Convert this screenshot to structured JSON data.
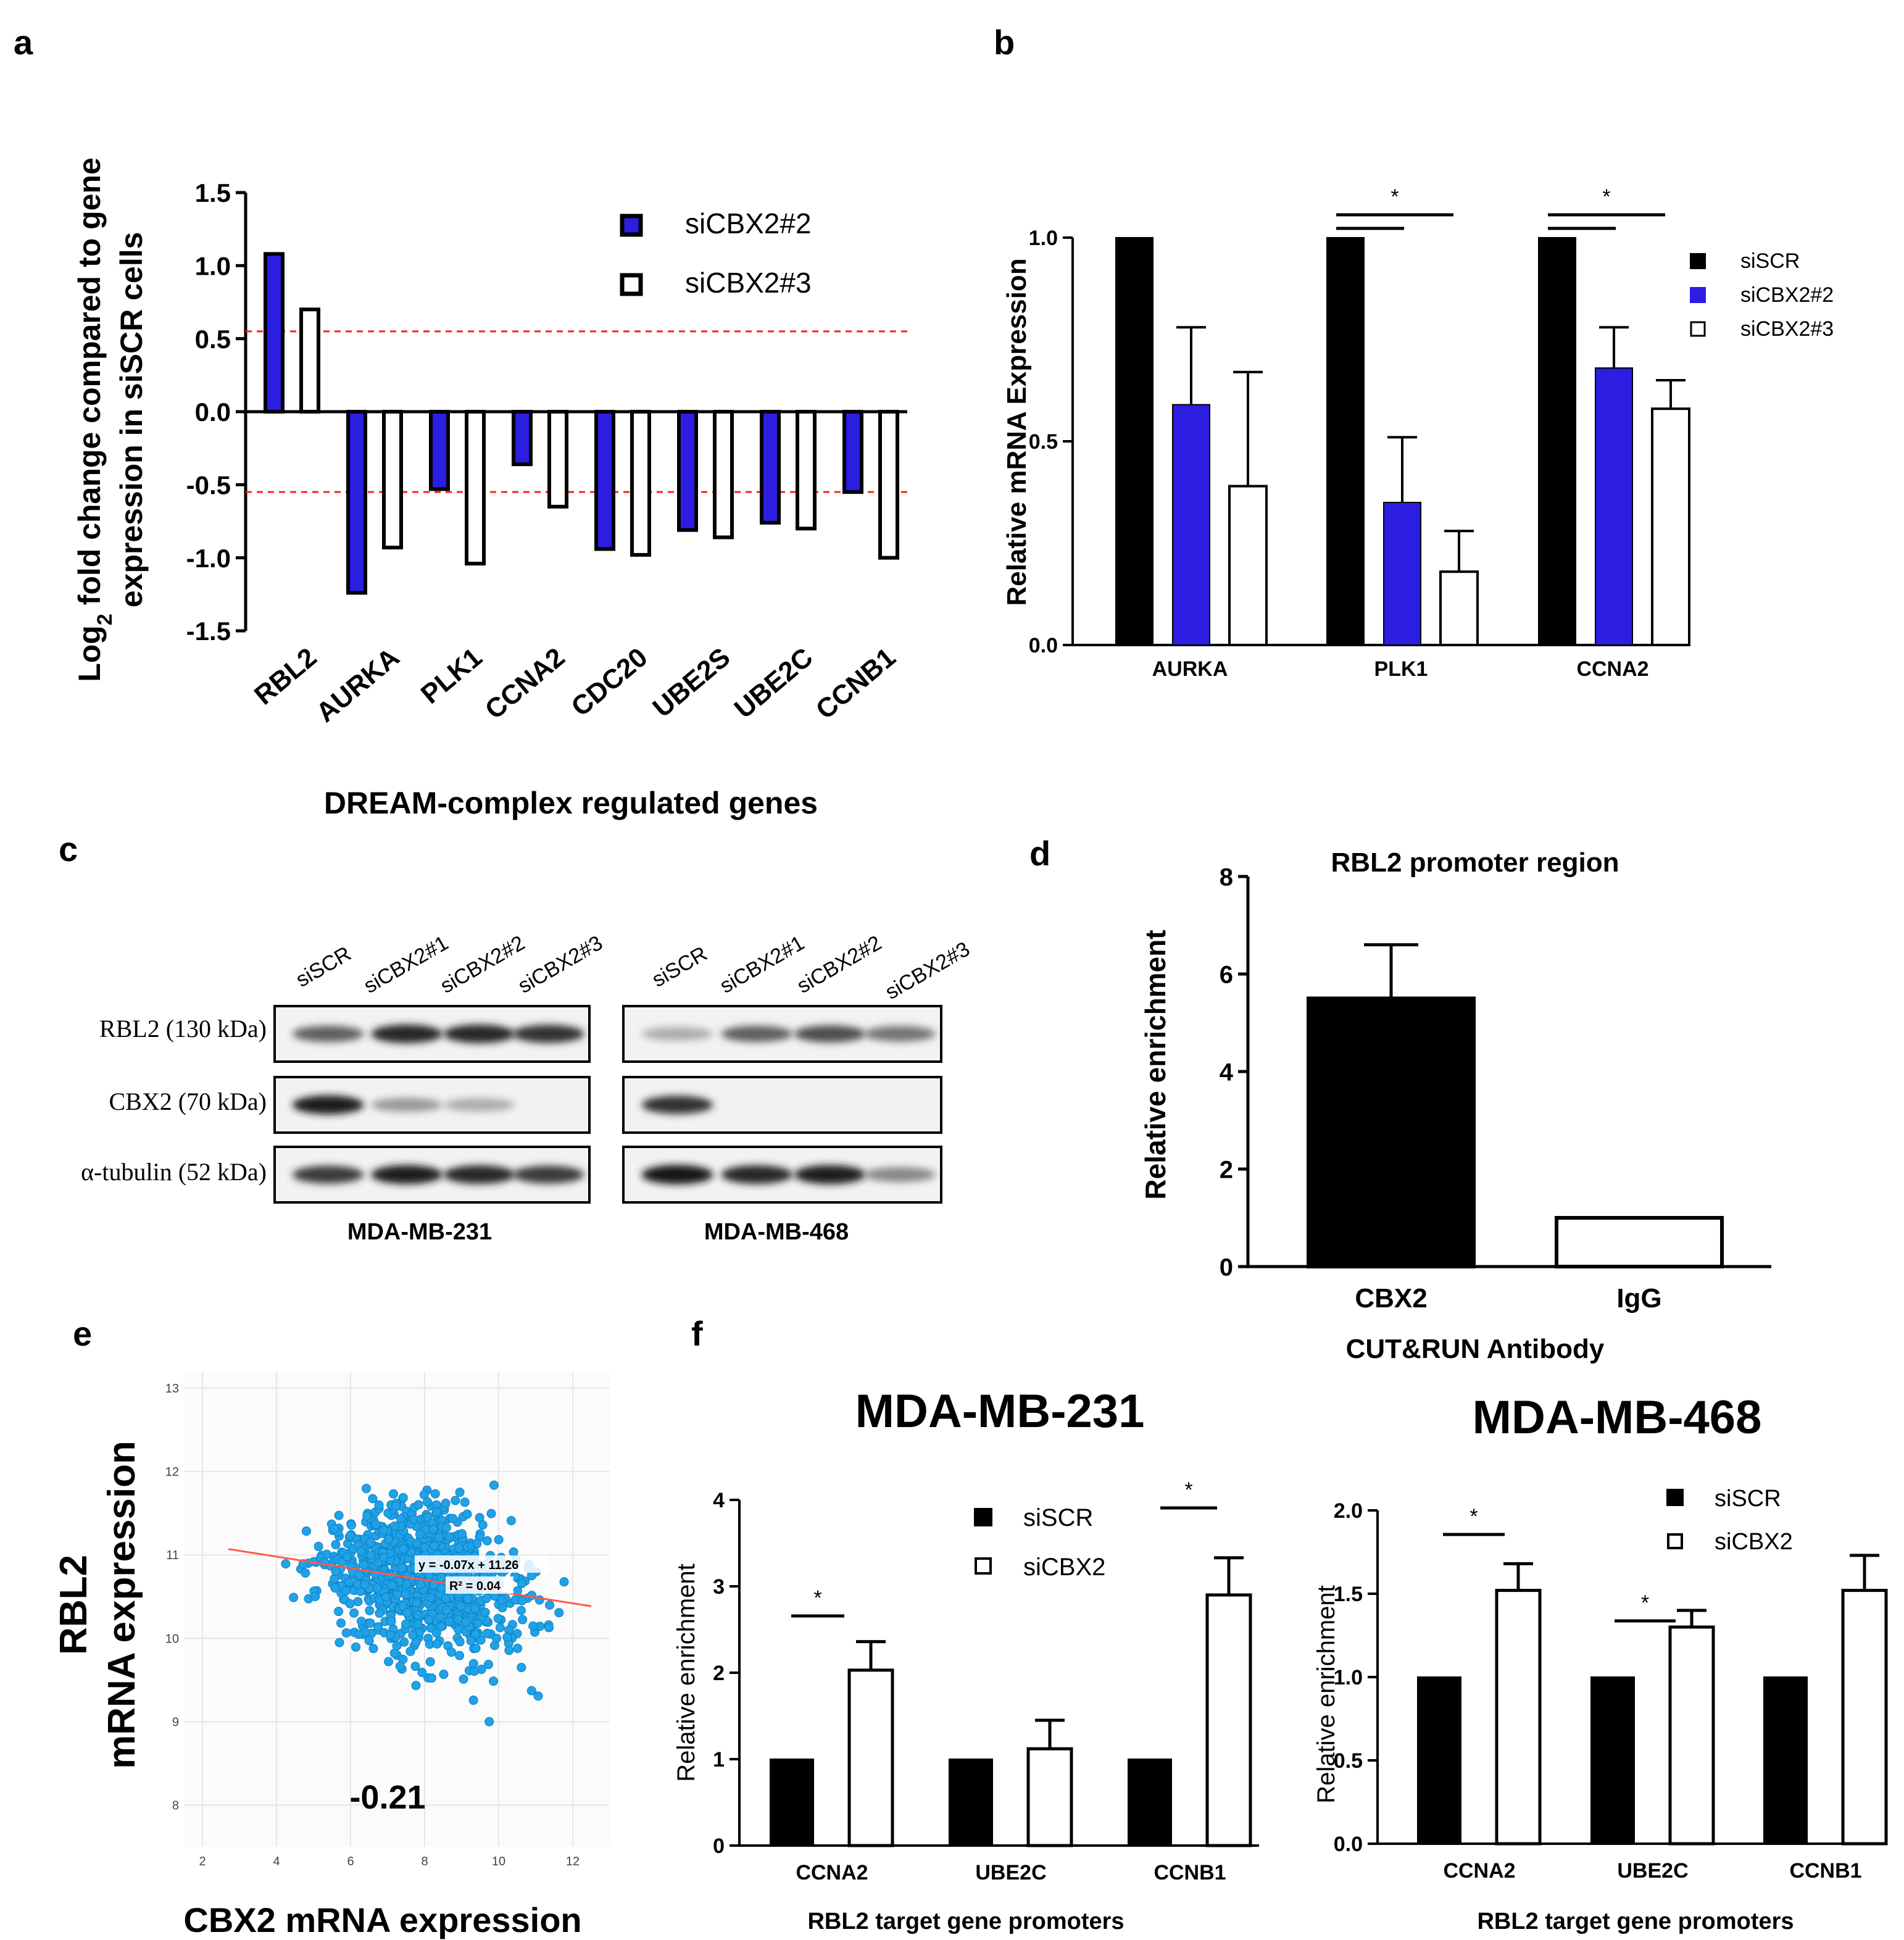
{
  "colors": {
    "black": "#000000",
    "blue": "#2b1ee0",
    "white": "#ffffff",
    "red_dash": "#ff2020",
    "scatter": "#1fa2e8",
    "fit_line": "#ff5a4a"
  },
  "panel_labels": [
    "a",
    "b",
    "c",
    "d",
    "e",
    "f"
  ],
  "chart_data": [
    {
      "id": "a",
      "type": "bar",
      "ylabel_line1": "Log",
      "ylabel_sub": "2",
      "ylabel_line1_rest": " fold change compared to gene",
      "ylabel_line2": "expression in siSCR cells",
      "xlabel": "DREAM-complex regulated genes",
      "categories": [
        "RBL2",
        "AURKA",
        "PLK1",
        "CCNA2",
        "CDC20",
        "UBE2S",
        "UBE2C",
        "CCNB1"
      ],
      "series": [
        {
          "name": "siCBX2#2",
          "values": [
            1.08,
            -1.24,
            -0.53,
            -0.36,
            -0.94,
            -0.81,
            -0.76,
            -0.55
          ]
        },
        {
          "name": "siCBX2#3",
          "values": [
            0.7,
            -0.93,
            -1.04,
            -0.65,
            -0.98,
            -0.86,
            -0.8,
            -1.0
          ]
        }
      ],
      "ylim": [
        -1.5,
        1.5
      ],
      "yticks": [
        "1.5",
        "1.0",
        "0.5",
        "0.0",
        "-0.5",
        "-1.0",
        "-1.5"
      ],
      "threshold_lines": [
        0.55,
        -0.55
      ]
    },
    {
      "id": "b",
      "type": "bar",
      "ylabel": "Relative mRNA Expression",
      "categories": [
        "AURKA",
        "PLK1",
        "CCNA2"
      ],
      "series": [
        {
          "name": "siSCR",
          "values": [
            1.0,
            1.0,
            1.0
          ],
          "errors": [
            0,
            0,
            0
          ]
        },
        {
          "name": "siCBX2#2",
          "values": [
            0.59,
            0.35,
            0.68
          ],
          "errors": [
            0.19,
            0.16,
            0.1
          ]
        },
        {
          "name": "siCBX2#3",
          "values": [
            0.39,
            0.18,
            0.58
          ],
          "errors": [
            0.28,
            0.1,
            0.07
          ]
        }
      ],
      "ylim": [
        0,
        1.0
      ],
      "yticks": [
        "1.0",
        "0.5",
        "0.0"
      ],
      "significance": "*"
    },
    {
      "id": "d",
      "type": "bar",
      "title": "RBL2 promoter region",
      "ylabel": "Relative enrichment",
      "xlabel": "CUT&RUN Antibody",
      "categories": [
        "CBX2",
        "IgG"
      ],
      "values": [
        5.5,
        1.0
      ],
      "errors": [
        1.1,
        0
      ],
      "ylim": [
        0,
        8
      ],
      "yticks": [
        "8",
        "6",
        "4",
        "2",
        "0"
      ]
    },
    {
      "id": "e",
      "type": "scatter",
      "xlabel": "CBX2 mRNA expression",
      "ylabel_line1": "RBL2",
      "ylabel_line2": "mRNA expression",
      "xlim": [
        1.5,
        13
      ],
      "ylim": [
        7.5,
        13.2
      ],
      "xticks": [
        "2",
        "4",
        "6",
        "8",
        "10",
        "12"
      ],
      "yticks": [
        "13",
        "12",
        "11",
        "10",
        "9",
        "8"
      ],
      "equation": "y = -0.07x + 11.26",
      "r_squared": "R² = 0.04",
      "correlation": "-0.21",
      "fit": {
        "slope": -0.07,
        "intercept": 11.26,
        "x_start": 2.7,
        "x_end": 12.5
      },
      "n_points": 950
    },
    {
      "id": "f1",
      "type": "bar",
      "title": "MDA-MB-231",
      "ylabel": "Relative enrichment",
      "xlabel": "RBL2 target gene promoters",
      "categories": [
        "CCNA2",
        "UBE2C",
        "CCNB1"
      ],
      "series": [
        {
          "name": "siSCR",
          "values": [
            1.0,
            1.0,
            1.0
          ],
          "errors": [
            0,
            0,
            0
          ]
        },
        {
          "name": "siCBX2",
          "values": [
            2.03,
            1.12,
            2.9
          ],
          "errors": [
            0.33,
            0.33,
            0.43
          ]
        }
      ],
      "ylim": [
        0,
        4
      ],
      "yticks": [
        "4",
        "3",
        "2",
        "1",
        "0"
      ],
      "significance": "*"
    },
    {
      "id": "f2",
      "type": "bar",
      "title": "MDA-MB-468",
      "ylabel": "Relative enrichment",
      "xlabel": "RBL2 target gene promoters",
      "categories": [
        "CCNA2",
        "UBE2C",
        "CCNB1"
      ],
      "series": [
        {
          "name": "siSCR",
          "values": [
            1.0,
            1.0,
            1.0
          ],
          "errors": [
            0,
            0,
            0
          ]
        },
        {
          "name": "siCBX2",
          "values": [
            1.52,
            1.3,
            1.52
          ],
          "errors": [
            0.16,
            0.1,
            0.21
          ]
        }
      ],
      "ylim": [
        0,
        2.0
      ],
      "yticks": [
        "2.0",
        "1.5",
        "1.0",
        "0.5",
        "0.0"
      ],
      "significance": "*"
    }
  ],
  "panel_c": {
    "lanes": [
      "siSCR",
      "siCBX2#1",
      "siCBX2#2",
      "siCBX2#3"
    ],
    "rows": [
      "RBL2 (130 kDa)",
      "CBX2 (70 kDa)",
      "α-tubulin (52 kDa)"
    ],
    "cell_lines": [
      "MDA-MB-231",
      "MDA-MB-468"
    ],
    "band_intensity": {
      "MDA-MB-231": {
        "RBL2": [
          0.55,
          0.85,
          0.85,
          0.8
        ],
        "CBX2": [
          0.9,
          0.25,
          0.15,
          0.0
        ],
        "tubulin": [
          0.75,
          0.9,
          0.85,
          0.75
        ]
      },
      "MDA-MB-468": {
        "RBL2": [
          0.15,
          0.55,
          0.65,
          0.45
        ],
        "CBX2": [
          0.8,
          0,
          0,
          0
        ],
        "tubulin": [
          0.95,
          0.85,
          0.9,
          0.35
        ]
      }
    }
  }
}
